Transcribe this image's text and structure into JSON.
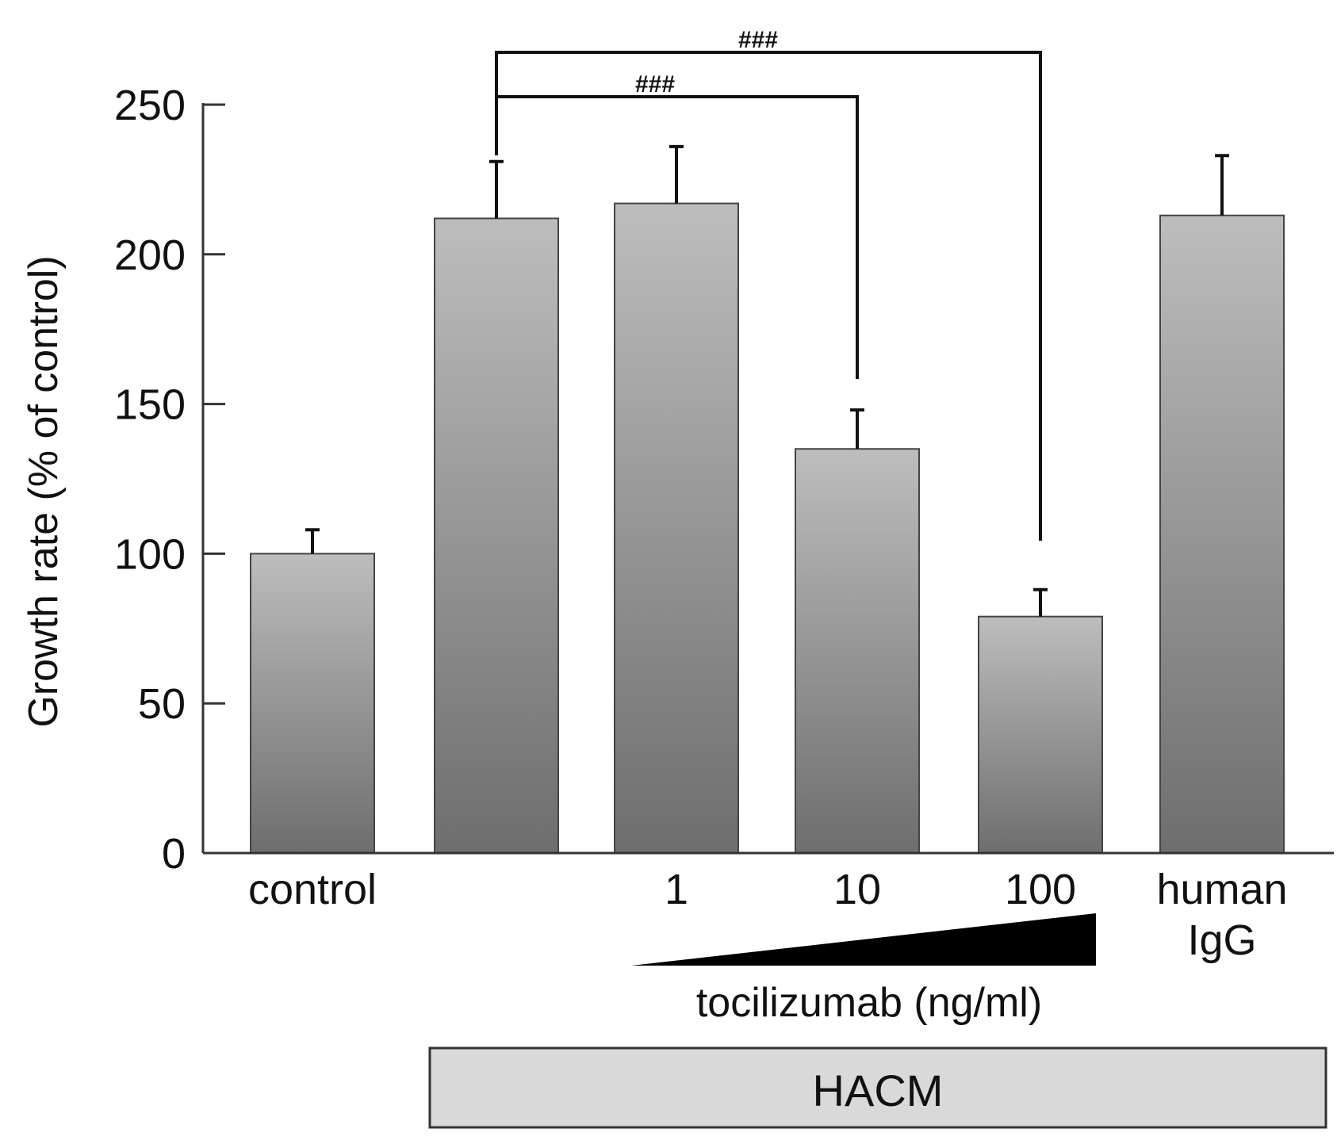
{
  "chart_data": {
    "type": "bar",
    "title": "",
    "ylabel": "Growth rate (% of control)",
    "xlabel": "",
    "ylim": [
      0,
      250
    ],
    "yticks": [
      0,
      50,
      100,
      150,
      200,
      250
    ],
    "grid": false,
    "categories": [
      "control",
      "",
      "1",
      "10",
      "100",
      "human IgG"
    ],
    "category_lines": [
      [
        "control"
      ],
      [],
      [
        "1"
      ],
      [
        "10"
      ],
      [
        "100"
      ],
      [
        "human",
        "IgG"
      ]
    ],
    "values": [
      100,
      212,
      217,
      135,
      79,
      213
    ],
    "errors": [
      8,
      19,
      19,
      13,
      9,
      20
    ],
    "bar_color_top": "#bdbdbd",
    "bar_color_bottom": "#6e6e6e",
    "significance": [
      {
        "from_index": 1,
        "to_index": 3,
        "label": "###"
      },
      {
        "from_index": 1,
        "to_index": 4,
        "label": "###"
      }
    ],
    "dose_label": "tocilizumab (ng/ml)",
    "group_label": "HACM",
    "group_color": "#d9d9d9"
  }
}
